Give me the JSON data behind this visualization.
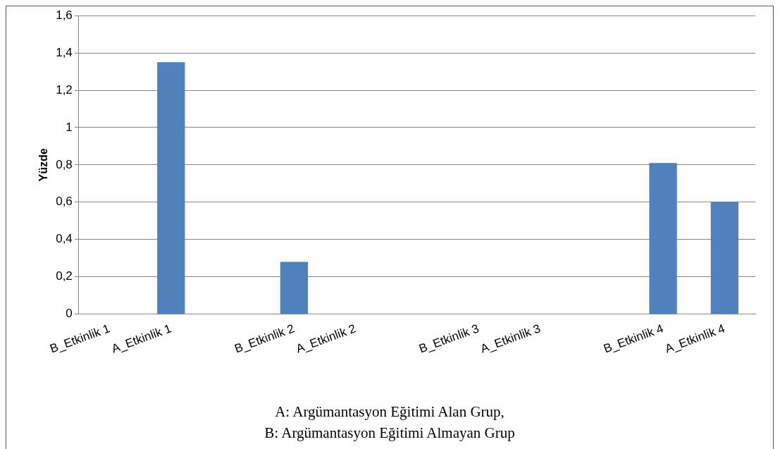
{
  "chart_data": {
    "type": "bar",
    "ylabel": "Yüzde",
    "categories": [
      "B_Etkinlik 1",
      "A_Etkinlik 1",
      null,
      "B_Etkinlik 2",
      "A_Etkinlik 2",
      null,
      "B_Etkinlik 3",
      "A_Etkinlik 3",
      null,
      "B_Etkinlik 4",
      "A_Etkinlik 4"
    ],
    "values": [
      0,
      1.35,
      null,
      0.28,
      0,
      null,
      0,
      0,
      null,
      0.81,
      0.6
    ],
    "color": "#4f81bd",
    "ylim": [
      0,
      1.6
    ],
    "yticks": [
      0,
      {
        "value": 0.2,
        "label": "0,2"
      },
      {
        "value": 0.4,
        "label": "0,4"
      },
      {
        "value": 0.6,
        "label": "0,6"
      },
      {
        "value": 0.8,
        "label": "0,8"
      },
      1,
      {
        "value": 1.2,
        "label": "1,2"
      },
      {
        "value": 1.4,
        "label": "1,4"
      },
      {
        "value": 1.6,
        "label": "1,6"
      }
    ],
    "grid": "y",
    "legend": false,
    "annotations": [
      "A: Argümantasyon Eğitimi Alan Grup,",
      "B: Argümantasyon Eğitimi Almayan Grup"
    ]
  }
}
